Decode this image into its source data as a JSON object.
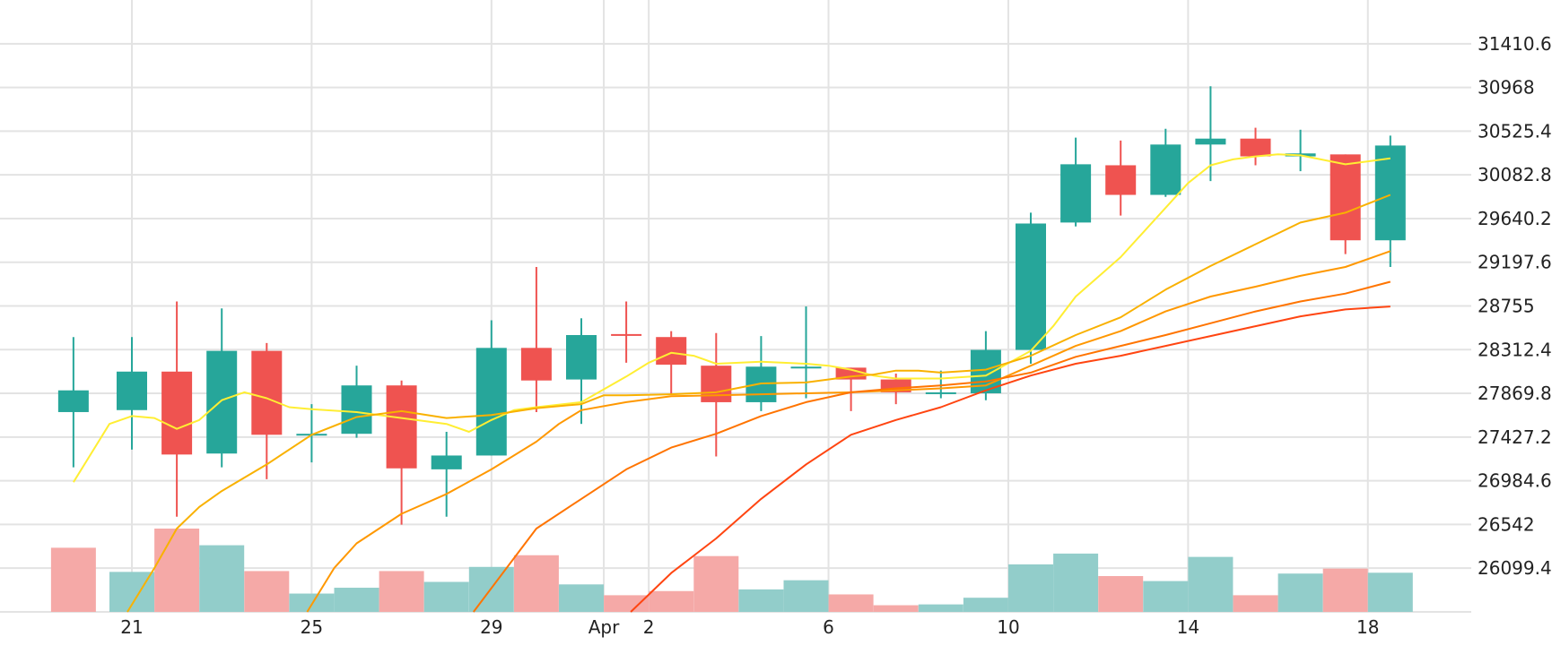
{
  "chart_data": {
    "type": "candlestick",
    "title": "",
    "xlabel": "",
    "ylabel": "",
    "ylim": [
      25656,
      31854
    ],
    "y_ticks": [
      "31410.6",
      "30968",
      "30525.4",
      "30082.8",
      "29640.2",
      "29197.6",
      "28755",
      "28312.4",
      "27869.8",
      "27427.2",
      "26984.6",
      "26542",
      "26099.4"
    ],
    "x_ticks": [
      {
        "label": "21",
        "day": 0
      },
      {
        "label": "25",
        "day": 4
      },
      {
        "label": "29",
        "day": 8
      },
      {
        "label": "Apr",
        "day": 10.5
      },
      {
        "label": "2",
        "day": 11.5
      },
      {
        "label": "6",
        "day": 15.5
      },
      {
        "label": "10",
        "day": 19.5
      },
      {
        "label": "14",
        "day": 23.5
      },
      {
        "label": "18",
        "day": 27.5
      }
    ],
    "grid": true,
    "colors": {
      "up": "#26a69a",
      "down": "#ef5350",
      "vol_up": "#92cdca",
      "vol_down": "#f5a9a7",
      "grid": "#e3e3e3",
      "text": "#222222"
    },
    "candles": [
      {
        "day": -1.3,
        "open": 27680,
        "high": 28440,
        "low": 27120,
        "close": 27900
      },
      {
        "day": 0,
        "open": 27700,
        "high": 28440,
        "low": 27300,
        "close": 28090
      },
      {
        "day": 1,
        "open": 28090,
        "high": 28800,
        "low": 26620,
        "close": 27250
      },
      {
        "day": 2,
        "open": 27260,
        "high": 28730,
        "low": 27120,
        "close": 28300
      },
      {
        "day": 3,
        "open": 28300,
        "high": 28380,
        "low": 27000,
        "close": 27450
      },
      {
        "day": 4,
        "open": 27460,
        "high": 27760,
        "low": 27170,
        "close": 27460
      },
      {
        "day": 5,
        "open": 27460,
        "high": 28150,
        "low": 27420,
        "close": 27950
      },
      {
        "day": 6,
        "open": 27950,
        "high": 28000,
        "low": 26540,
        "close": 27110
      },
      {
        "day": 7,
        "open": 27100,
        "high": 27480,
        "low": 26620,
        "close": 27240
      },
      {
        "day": 8,
        "open": 27240,
        "high": 28610,
        "low": 27240,
        "close": 28330
      },
      {
        "day": 9,
        "open": 28330,
        "high": 29150,
        "low": 27680,
        "close": 28000
      },
      {
        "day": 10,
        "open": 28010,
        "high": 28630,
        "low": 27560,
        "close": 28460
      },
      {
        "day": 11,
        "open": 28470,
        "high": 28800,
        "low": 28180,
        "close": 28460
      },
      {
        "day": 12,
        "open": 28440,
        "high": 28500,
        "low": 27860,
        "close": 28160
      },
      {
        "day": 13,
        "open": 28150,
        "high": 28480,
        "low": 27230,
        "close": 27780
      },
      {
        "day": 14,
        "open": 27780,
        "high": 28450,
        "low": 27690,
        "close": 28140
      },
      {
        "day": 15,
        "open": 28140,
        "high": 28750,
        "low": 27820,
        "close": 28140
      },
      {
        "day": 16,
        "open": 28130,
        "high": 28130,
        "low": 27690,
        "close": 28010
      },
      {
        "day": 17,
        "open": 28010,
        "high": 28070,
        "low": 27760,
        "close": 27880
      },
      {
        "day": 18,
        "open": 27880,
        "high": 28100,
        "low": 27820,
        "close": 27880
      },
      {
        "day": 19,
        "open": 27870,
        "high": 28500,
        "low": 27800,
        "close": 28310
      },
      {
        "day": 20,
        "open": 28310,
        "high": 29700,
        "low": 28170,
        "close": 29590
      },
      {
        "day": 21,
        "open": 29600,
        "high": 30460,
        "low": 29560,
        "close": 30190
      },
      {
        "day": 22,
        "open": 30180,
        "high": 30430,
        "low": 29670,
        "close": 29880
      },
      {
        "day": 23,
        "open": 29880,
        "high": 30550,
        "low": 29860,
        "close": 30390
      },
      {
        "day": 24,
        "open": 30390,
        "high": 30980,
        "low": 30020,
        "close": 30450
      },
      {
        "day": 25,
        "open": 30450,
        "high": 30560,
        "low": 30180,
        "close": 30270
      },
      {
        "day": 26,
        "open": 30270,
        "high": 30540,
        "low": 30120,
        "close": 30300
      },
      {
        "day": 27,
        "open": 30290,
        "high": 30290,
        "low": 29280,
        "close": 29420
      },
      {
        "day": 28,
        "open": 29420,
        "high": 30480,
        "low": 29150,
        "close": 30380
      }
    ],
    "volumes": [
      {
        "day": -1.3,
        "value": 0.77,
        "up": false
      },
      {
        "day": 0,
        "value": 0.48,
        "up": true
      },
      {
        "day": 1,
        "value": 1.0,
        "up": false
      },
      {
        "day": 2,
        "value": 0.8,
        "up": true
      },
      {
        "day": 3,
        "value": 0.49,
        "up": false
      },
      {
        "day": 4,
        "value": 0.22,
        "up": true
      },
      {
        "day": 5,
        "value": 0.29,
        "up": true
      },
      {
        "day": 6,
        "value": 0.49,
        "up": false
      },
      {
        "day": 7,
        "value": 0.36,
        "up": true
      },
      {
        "day": 8,
        "value": 0.54,
        "up": true
      },
      {
        "day": 9,
        "value": 0.68,
        "up": false
      },
      {
        "day": 10,
        "value": 0.33,
        "up": true
      },
      {
        "day": 11,
        "value": 0.2,
        "up": false
      },
      {
        "day": 12,
        "value": 0.25,
        "up": false
      },
      {
        "day": 13,
        "value": 0.67,
        "up": false
      },
      {
        "day": 14,
        "value": 0.27,
        "up": true
      },
      {
        "day": 15,
        "value": 0.38,
        "up": true
      },
      {
        "day": 16,
        "value": 0.21,
        "up": false
      },
      {
        "day": 17,
        "value": 0.08,
        "up": false
      },
      {
        "day": 18,
        "value": 0.09,
        "up": true
      },
      {
        "day": 19,
        "value": 0.17,
        "up": true
      },
      {
        "day": 20,
        "value": 0.57,
        "up": true
      },
      {
        "day": 21,
        "value": 0.7,
        "up": true
      },
      {
        "day": 22,
        "value": 0.43,
        "up": false
      },
      {
        "day": 23,
        "value": 0.37,
        "up": true
      },
      {
        "day": 24,
        "value": 0.66,
        "up": true
      },
      {
        "day": 25,
        "value": 0.2,
        "up": false
      },
      {
        "day": 26,
        "value": 0.46,
        "up": true
      },
      {
        "day": 27,
        "value": 0.52,
        "up": false
      },
      {
        "day": 28,
        "value": 0.47,
        "up": true
      }
    ],
    "series": [
      {
        "color": "#ffee33",
        "points": [
          [
            -1.3,
            26970
          ],
          [
            -0.5,
            27560
          ],
          [
            0,
            27640
          ],
          [
            0.5,
            27620
          ],
          [
            1,
            27510
          ],
          [
            1.5,
            27600
          ],
          [
            2,
            27800
          ],
          [
            2.5,
            27880
          ],
          [
            3,
            27820
          ],
          [
            3.5,
            27730
          ],
          [
            4,
            27710
          ],
          [
            5,
            27680
          ],
          [
            6,
            27620
          ],
          [
            7,
            27560
          ],
          [
            7.5,
            27480
          ],
          [
            8,
            27600
          ],
          [
            8.5,
            27700
          ],
          [
            9,
            27730
          ],
          [
            10,
            27780
          ],
          [
            11,
            28040
          ],
          [
            11.5,
            28180
          ],
          [
            12,
            28280
          ],
          [
            12.5,
            28250
          ],
          [
            13,
            28170
          ],
          [
            14,
            28190
          ],
          [
            15,
            28170
          ],
          [
            15.5,
            28150
          ],
          [
            16,
            28110
          ],
          [
            16.5,
            28050
          ],
          [
            17,
            28020
          ],
          [
            18,
            28020
          ],
          [
            19,
            28050
          ],
          [
            20,
            28300
          ],
          [
            20.5,
            28550
          ],
          [
            21,
            28850
          ],
          [
            21.5,
            29050
          ],
          [
            22,
            29250
          ],
          [
            22.5,
            29500
          ],
          [
            23,
            29750
          ],
          [
            23.5,
            30000
          ],
          [
            24,
            30180
          ],
          [
            24.5,
            30240
          ],
          [
            25,
            30270
          ],
          [
            25.5,
            30290
          ],
          [
            26,
            30280
          ],
          [
            27,
            30190
          ],
          [
            27.5,
            30220
          ],
          [
            28,
            30250
          ]
        ]
      },
      {
        "color": "#f9b100",
        "points": [
          [
            -0.1,
            25656
          ],
          [
            0.5,
            26100
          ],
          [
            1,
            26500
          ],
          [
            1.5,
            26720
          ],
          [
            2,
            26880
          ],
          [
            3,
            27150
          ],
          [
            4,
            27450
          ],
          [
            5,
            27630
          ],
          [
            6,
            27690
          ],
          [
            7,
            27620
          ],
          [
            8,
            27650
          ],
          [
            9,
            27720
          ],
          [
            10,
            27760
          ],
          [
            10.5,
            27850
          ],
          [
            11,
            27850
          ],
          [
            12,
            27860
          ],
          [
            13,
            27880
          ],
          [
            14,
            27970
          ],
          [
            15,
            27980
          ],
          [
            16,
            28040
          ],
          [
            16.5,
            28060
          ],
          [
            17,
            28100
          ],
          [
            17.5,
            28100
          ],
          [
            18,
            28080
          ],
          [
            19,
            28110
          ],
          [
            20,
            28250
          ],
          [
            21,
            28460
          ],
          [
            22,
            28640
          ],
          [
            23,
            28920
          ],
          [
            24,
            29160
          ],
          [
            25,
            29380
          ],
          [
            26,
            29600
          ],
          [
            27,
            29700
          ],
          [
            28,
            29880
          ]
        ]
      },
      {
        "color": "#ff9800",
        "points": [
          [
            3.9,
            25656
          ],
          [
            4.5,
            26100
          ],
          [
            5,
            26350
          ],
          [
            6,
            26650
          ],
          [
            7,
            26850
          ],
          [
            8,
            27100
          ],
          [
            9,
            27380
          ],
          [
            9.5,
            27560
          ],
          [
            10,
            27700
          ],
          [
            11,
            27780
          ],
          [
            12,
            27840
          ],
          [
            13,
            27850
          ],
          [
            14,
            27860
          ],
          [
            15,
            27870
          ],
          [
            16,
            27880
          ],
          [
            17,
            27900
          ],
          [
            18,
            27920
          ],
          [
            19,
            27950
          ],
          [
            20,
            28150
          ],
          [
            21,
            28350
          ],
          [
            22,
            28500
          ],
          [
            23,
            28700
          ],
          [
            24,
            28850
          ],
          [
            25,
            28950
          ],
          [
            26,
            29060
          ],
          [
            27,
            29150
          ],
          [
            28,
            29310
          ]
        ]
      },
      {
        "color": "#ff7400",
        "points": [
          [
            7.6,
            25656
          ],
          [
            8.5,
            26200
          ],
          [
            9,
            26500
          ],
          [
            10,
            26800
          ],
          [
            11,
            27100
          ],
          [
            12,
            27320
          ],
          [
            13,
            27460
          ],
          [
            14,
            27640
          ],
          [
            15,
            27780
          ],
          [
            16,
            27880
          ],
          [
            17,
            27920
          ],
          [
            18,
            27950
          ],
          [
            19,
            27990
          ],
          [
            20,
            28080
          ],
          [
            21,
            28240
          ],
          [
            22,
            28350
          ],
          [
            23,
            28460
          ],
          [
            24,
            28580
          ],
          [
            25,
            28700
          ],
          [
            26,
            28800
          ],
          [
            27,
            28880
          ],
          [
            28,
            29000
          ]
        ]
      },
      {
        "color": "#ff4511",
        "points": [
          [
            11.1,
            25656
          ],
          [
            12,
            26050
          ],
          [
            13,
            26400
          ],
          [
            14,
            26800
          ],
          [
            15,
            27150
          ],
          [
            16,
            27450
          ],
          [
            17,
            27600
          ],
          [
            18,
            27730
          ],
          [
            19,
            27900
          ],
          [
            20,
            28050
          ],
          [
            21,
            28170
          ],
          [
            22,
            28250
          ],
          [
            23,
            28350
          ],
          [
            24,
            28450
          ],
          [
            25,
            28550
          ],
          [
            26,
            28650
          ],
          [
            27,
            28720
          ],
          [
            28,
            28750
          ]
        ]
      }
    ]
  }
}
